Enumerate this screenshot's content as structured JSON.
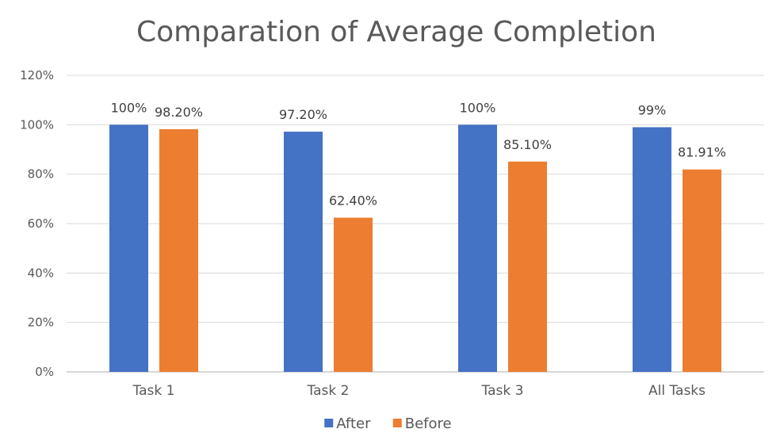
{
  "chart_data": {
    "type": "bar",
    "title": "Comparation of Average Completion",
    "categories": [
      "Task 1",
      "Task 2",
      "Task 3",
      "All Tasks"
    ],
    "series": [
      {
        "name": "After",
        "color": "#4472C4",
        "values": [
          100,
          97.2,
          100,
          99
        ],
        "labels": [
          "100%",
          "97.20%",
          "100%",
          "99%"
        ]
      },
      {
        "name": "Before",
        "color": "#ED7D31",
        "values": [
          98.2,
          62.4,
          85.1,
          81.91
        ],
        "labels": [
          "98.20%",
          "62.40%",
          "85.10%",
          "81.91%"
        ]
      }
    ],
    "ylim": [
      0,
      120
    ],
    "yticks": [
      0,
      20,
      40,
      60,
      80,
      100,
      120
    ],
    "ytick_labels": [
      "0%",
      "20%",
      "40%",
      "60%",
      "80%",
      "100%",
      "120%"
    ],
    "grid": true,
    "legend_position": "bottom"
  }
}
